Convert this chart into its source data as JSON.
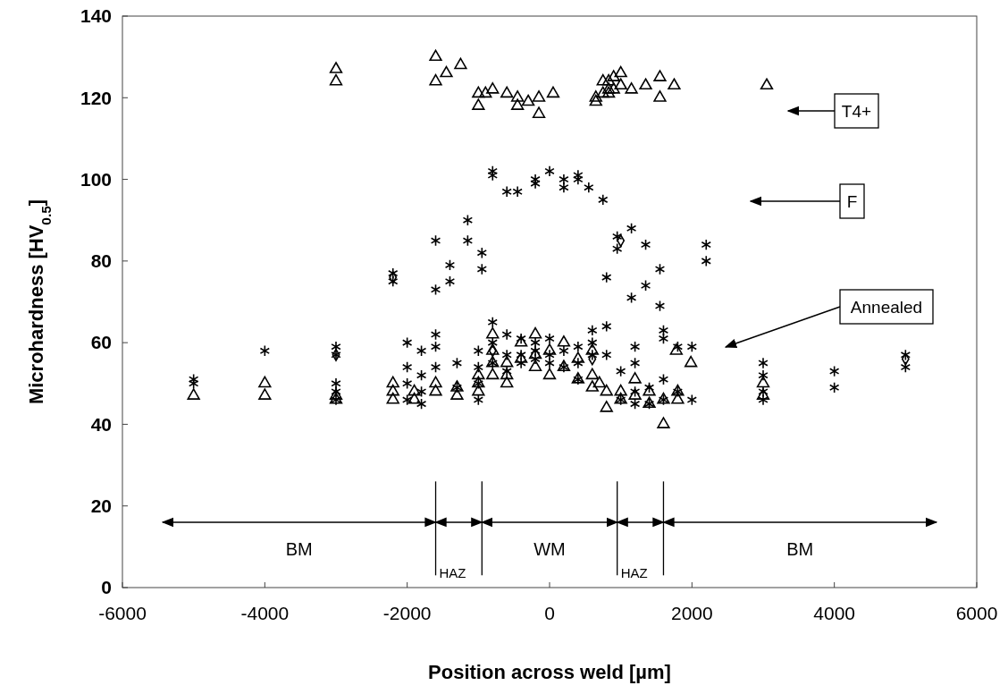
{
  "chart_data": {
    "type": "scatter",
    "xlabel": "Position across weld [µm]",
    "ylabel": "Microhardness [HV$_{0.5}$]",
    "xlim": [
      -6000,
      6000
    ],
    "xticks": [
      -6000,
      -4000,
      -2000,
      0,
      2000,
      4000,
      6000
    ],
    "ylim": [
      0,
      140
    ],
    "yticks": [
      0,
      20,
      40,
      60,
      80,
      100,
      120,
      140
    ],
    "grid": false,
    "series": [
      {
        "color": "#000000",
        "marker": "triangle",
        "x": [
          -3000,
          -3000,
          -1600,
          -1600,
          -1450,
          -1250,
          -1000,
          -1000,
          -900,
          -800,
          -600,
          -450,
          -450,
          -300,
          -150,
          -150,
          50,
          650,
          650,
          750,
          750,
          830,
          830,
          830,
          900,
          900,
          1000,
          1000,
          1150,
          1350,
          1550,
          1550,
          1750,
          3050,
          -5000,
          -4000,
          -4000,
          -3000,
          -3000,
          -2200,
          -2200,
          -2200,
          -1900,
          -1900,
          -1600,
          -1600,
          -1300,
          -1300,
          -1000,
          -1000,
          -1000,
          -800,
          -800,
          -800,
          -800,
          -600,
          -600,
          -600,
          -400,
          -400,
          -200,
          -200,
          -200,
          0,
          0,
          200,
          200,
          400,
          400,
          600,
          600,
          600,
          700,
          800,
          800,
          1000,
          1000,
          1200,
          1200,
          1400,
          1400,
          1600,
          1600,
          1800,
          1800,
          1780,
          1985,
          3000,
          3000
        ],
        "values": [
          127,
          124,
          130,
          124,
          126,
          128,
          121,
          118,
          121,
          122,
          121,
          120,
          118,
          119,
          120,
          116,
          121,
          120,
          119,
          124,
          121,
          124,
          122,
          121,
          125,
          122,
          126,
          123,
          122,
          123,
          125,
          120,
          123,
          123,
          47,
          50,
          47,
          47,
          46,
          50,
          48,
          46,
          48,
          46,
          50,
          48,
          49,
          47,
          52,
          50,
          48,
          62,
          58,
          55,
          52,
          55,
          52,
          50,
          60,
          56,
          62,
          57,
          54,
          58,
          52,
          60,
          54,
          56,
          51,
          58,
          52,
          49,
          50,
          44,
          48,
          48,
          46,
          51,
          47,
          48,
          45,
          40,
          46,
          48,
          46,
          58,
          55,
          47,
          50
        ]
      },
      {
        "color": "#000000",
        "marker": "cross",
        "x": [
          -2200,
          -2200,
          -1600,
          -1600,
          -1400,
          -1400,
          -1150,
          -1150,
          -950,
          -950,
          -800,
          -800,
          -600,
          -450,
          -200,
          -200,
          0,
          200,
          200,
          400,
          400,
          550,
          750,
          800,
          950,
          950,
          1150,
          1150,
          1350,
          1350,
          1550,
          1550,
          1600,
          1600,
          2200,
          2200,
          -5000,
          -5000,
          -4000,
          -3000,
          -3000,
          -3000,
          -3000,
          -3000,
          -2000,
          -2000,
          -2000,
          -2000,
          -1800,
          -1800,
          -1800,
          -1800,
          -1600,
          -1600,
          -1600,
          -1300,
          -1300,
          -1000,
          -1000,
          -1000,
          -1000,
          -800,
          -800,
          -800,
          -600,
          -600,
          -600,
          -400,
          -400,
          -400,
          -200,
          -200,
          -200,
          0,
          0,
          0,
          200,
          200,
          400,
          400,
          400,
          600,
          600,
          600,
          800,
          800,
          1000,
          1000,
          1200,
          1200,
          1200,
          1200,
          1400,
          1400,
          1600,
          1600,
          1800,
          1800,
          2000,
          2000,
          3000,
          3000,
          3000,
          3000,
          4000,
          4000,
          5000,
          5000
        ],
        "values": [
          77,
          75,
          85,
          73,
          79,
          75,
          90,
          85,
          82,
          78,
          102,
          101,
          97,
          97,
          100,
          99,
          102,
          100,
          98,
          101,
          100,
          98,
          95,
          76,
          86,
          83,
          88,
          71,
          84,
          74,
          78,
          69,
          63,
          61,
          84,
          80,
          51,
          50,
          58,
          59,
          57,
          50,
          48,
          46,
          60,
          54,
          50,
          46,
          58,
          52,
          48,
          45,
          62,
          59,
          54,
          55,
          49,
          58,
          54,
          50,
          46,
          65,
          60,
          55,
          62,
          57,
          53,
          61,
          57,
          55,
          60,
          58,
          56,
          61,
          57,
          55,
          58,
          54,
          59,
          55,
          51,
          63,
          60,
          57,
          64,
          57,
          53,
          46,
          59,
          55,
          48,
          45,
          49,
          45,
          51,
          46,
          59,
          48,
          59,
          46,
          55,
          52,
          48,
          46,
          53,
          49,
          57,
          54
        ]
      },
      {
        "color": "#000000",
        "marker": "diamond",
        "x": [
          -3000,
          -2200,
          -800,
          600,
          1000,
          5000
        ],
        "values": [
          57,
          76,
          58,
          56,
          85,
          56
        ]
      }
    ],
    "annotations": [
      "T4+",
      "F",
      "Annealed",
      "BM",
      "HAZ",
      "WM",
      "HAZ",
      "BM"
    ],
    "ref_lines": [
      {
        "axis": "x",
        "value": -1600
      },
      {
        "axis": "x",
        "value": -950
      },
      {
        "axis": "x",
        "value": 950
      },
      {
        "axis": "x",
        "value": 1600
      }
    ]
  }
}
